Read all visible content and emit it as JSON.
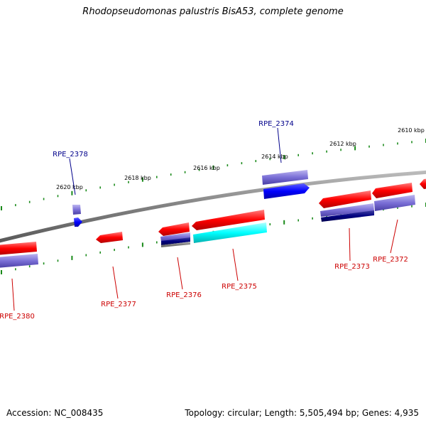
{
  "title": "Rhodopseudomonas palustris BisA53, complete genome",
  "footer": {
    "accession": "Accession: NC_008435",
    "summary": "Topology: circular; Length: 5,505,494 bp; Genes: 4,935"
  },
  "colors": {
    "forward_gene": "#ff0000",
    "reverse_gene": "#7a6fd6",
    "blue_gene": "#0000ff",
    "cyan_gene": "#00ffff",
    "navy_gene": "#000080",
    "backbone": "#808080",
    "tick": "#1a8a1a",
    "label_top": "#00008b",
    "label_bottom": "#cc0000"
  },
  "scale_labels": [
    "2610 kbp",
    "2612 kbp",
    "2614 kbp",
    "2616 kbp",
    "2618 kbp",
    "2620 kbp"
  ],
  "gene_labels_top": [
    "RPE_2374",
    "RPE_2378"
  ],
  "gene_labels_bottom": [
    "RPE_2372",
    "RPE_2373",
    "RPE_2375",
    "RPE_2376",
    "RPE_2377",
    "RPE_2380"
  ]
}
